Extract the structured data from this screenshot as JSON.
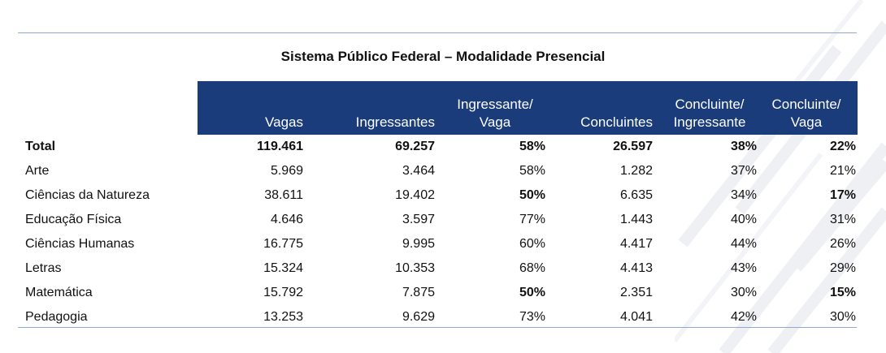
{
  "title": "Sistema Público Federal – Modalidade Presencial",
  "colors": {
    "header_bg": "#1a3c7a",
    "header_text": "#ffffff",
    "rule": "#8fa8d6"
  },
  "headers": [
    {
      "line1": "",
      "line2": "Vagas"
    },
    {
      "line1": "",
      "line2": "Ingressantes"
    },
    {
      "line1": "Ingressante/",
      "line2": "Vaga"
    },
    {
      "line1": "",
      "line2": "Concluintes"
    },
    {
      "line1": "Concluinte/",
      "line2": "Ingressante"
    },
    {
      "line1": "Concluinte/",
      "line2": "Vaga"
    }
  ],
  "rows": [
    {
      "name": "Total",
      "vagas": "119.461",
      "ingressantes": "69.257",
      "ingressante_vaga": "58%",
      "concluintes": "26.597",
      "concluinte_ingressante": "38%",
      "concluinte_vaga": "22%"
    },
    {
      "name": "Arte",
      "vagas": "5.969",
      "ingressantes": "3.464",
      "ingressante_vaga": "58%",
      "concluintes": "1.282",
      "concluinte_ingressante": "37%",
      "concluinte_vaga": "21%"
    },
    {
      "name": "Ciências da Natureza",
      "vagas": "38.611",
      "ingressantes": "19.402",
      "ingressante_vaga": "50%",
      "concluintes": "6.635",
      "concluinte_ingressante": "34%",
      "concluinte_vaga": "17%"
    },
    {
      "name": "Educação Física",
      "vagas": "4.646",
      "ingressantes": "3.597",
      "ingressante_vaga": "77%",
      "concluintes": "1.443",
      "concluinte_ingressante": "40%",
      "concluinte_vaga": "31%"
    },
    {
      "name": "Ciências Humanas",
      "vagas": "16.775",
      "ingressantes": "9.995",
      "ingressante_vaga": "60%",
      "concluintes": "4.417",
      "concluinte_ingressante": "44%",
      "concluinte_vaga": "26%"
    },
    {
      "name": "Letras",
      "vagas": "15.324",
      "ingressantes": "10.353",
      "ingressante_vaga": "68%",
      "concluintes": "4.413",
      "concluinte_ingressante": "43%",
      "concluinte_vaga": "29%"
    },
    {
      "name": "Matemática",
      "vagas": "15.792",
      "ingressantes": "7.875",
      "ingressante_vaga": "50%",
      "concluintes": "2.351",
      "concluinte_ingressante": "30%",
      "concluinte_vaga": "15%"
    },
    {
      "name": "Pedagogia",
      "vagas": "13.253",
      "ingressantes": "9.629",
      "ingressante_vaga": "73%",
      "concluintes": "4.041",
      "concluinte_ingressante": "42%",
      "concluinte_vaga": "30%"
    }
  ]
}
